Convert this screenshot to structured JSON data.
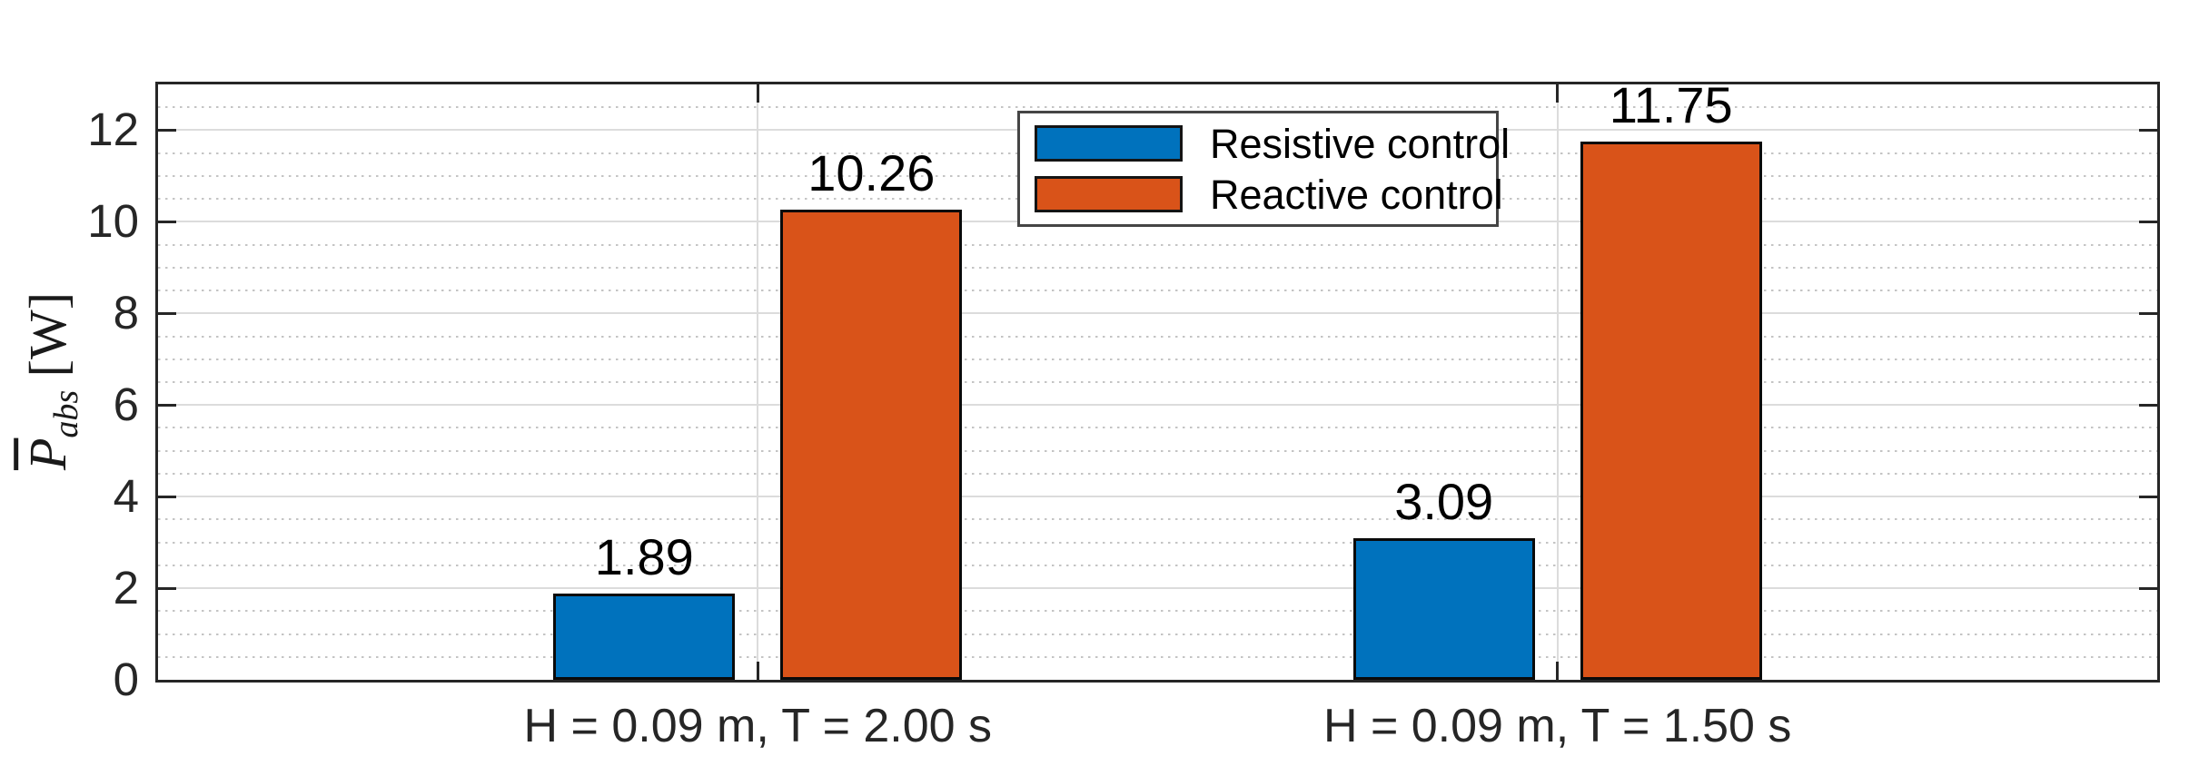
{
  "chart_data": {
    "type": "bar",
    "title": "",
    "categories": [
      "H = 0.09 m, T = 2.00 s",
      "H = 0.09 m, T = 1.50 s"
    ],
    "series": [
      {
        "name": "Resistive control",
        "color": "#0072BD",
        "values": [
          1.89,
          3.09
        ]
      },
      {
        "name": "Reactive control",
        "color": "#D95319",
        "values": [
          10.26,
          11.75
        ]
      }
    ],
    "bar_value_labels": [
      [
        "1.89",
        "3.09"
      ],
      [
        "10.26",
        "11.75"
      ]
    ],
    "xlabel": "",
    "ylabel": {
      "symbol": "P",
      "overline": true,
      "subscript": "abs",
      "unit": " [W]"
    },
    "ylim": [
      0,
      13
    ],
    "yticks": [
      0,
      2,
      4,
      6,
      8,
      10,
      12
    ],
    "minor_step": 0.5,
    "grid": "on",
    "minor_grid": "on",
    "legend": {
      "position": "north",
      "entries": [
        "Resistive control",
        "Reactive control"
      ]
    },
    "colors": {
      "axis": "#262626",
      "major_grid": "#dcdcdc",
      "minor_grid": "#c4c4c4",
      "bar_edge": "#0a0a0a",
      "background": "#ffffff"
    }
  }
}
